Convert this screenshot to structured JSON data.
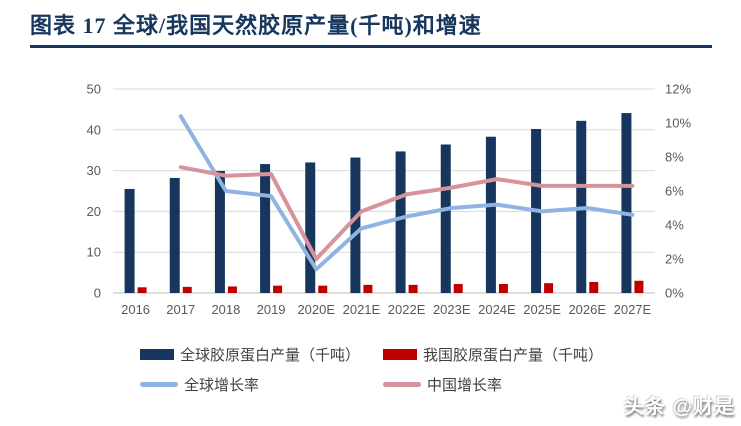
{
  "title": "图表 17  全球/我国天然胶原产量(千吨)和增速",
  "watermark": "头条 @财是",
  "colors": {
    "title": "#17375E",
    "rule": "#17375E",
    "axis_text": "#595959",
    "grid": "#D9D9D9",
    "axis_line": "#BFBFBF",
    "legend_text": "#404040",
    "global_bar": "#16365D",
    "china_bar": "#C00000",
    "global_line": "#8FB4E2",
    "china_line": "#D6939B"
  },
  "chart_data": {
    "type": "bar+line combo, dual axis",
    "categories": [
      "2016",
      "2017",
      "2018",
      "2019",
      "2020E",
      "2021E",
      "2022E",
      "2023E",
      "2024E",
      "2025E",
      "2026E",
      "2027E"
    ],
    "bar_series": [
      {
        "key": "global-production",
        "name": "全球胶原蛋白产量（千吨）",
        "axis": "left",
        "color": "#16365D",
        "values": [
          25.5,
          28.2,
          29.9,
          31.6,
          32.0,
          33.2,
          34.7,
          36.4,
          38.3,
          40.2,
          42.2,
          44.1
        ]
      },
      {
        "key": "china-production",
        "name": "我国胶原蛋白产量（千吨）",
        "axis": "left",
        "color": "#C00000",
        "values": [
          1.4,
          1.5,
          1.6,
          1.8,
          1.8,
          2.0,
          2.0,
          2.2,
          2.2,
          2.4,
          2.7,
          3.0
        ]
      }
    ],
    "line_series": [
      {
        "key": "global-growth",
        "name": "全球增长率",
        "axis": "right",
        "color": "#8FB4E2",
        "values": [
          null,
          10.4,
          6.0,
          5.7,
          1.4,
          3.8,
          4.5,
          5.0,
          5.2,
          4.8,
          5.0,
          4.6
        ]
      },
      {
        "key": "china-growth",
        "name": "中国增长率",
        "axis": "right",
        "color": "#D6939B",
        "values": [
          null,
          7.4,
          6.9,
          7.0,
          2.0,
          4.8,
          5.8,
          6.2,
          6.7,
          6.3,
          6.3,
          6.3
        ]
      }
    ],
    "left_axis": {
      "min": 0,
      "max": 50,
      "step": 10,
      "labels": [
        "0",
        "10",
        "20",
        "30",
        "40",
        "50"
      ]
    },
    "right_axis": {
      "min": 0,
      "max": 12,
      "step": 2,
      "labels": [
        "0%",
        "2%",
        "4%",
        "6%",
        "8%",
        "10%",
        "12%"
      ],
      "unit": "%"
    },
    "grid": "horizontal gridlines aligned to left-axis ticks",
    "legend_position": "bottom, two rows two columns"
  }
}
